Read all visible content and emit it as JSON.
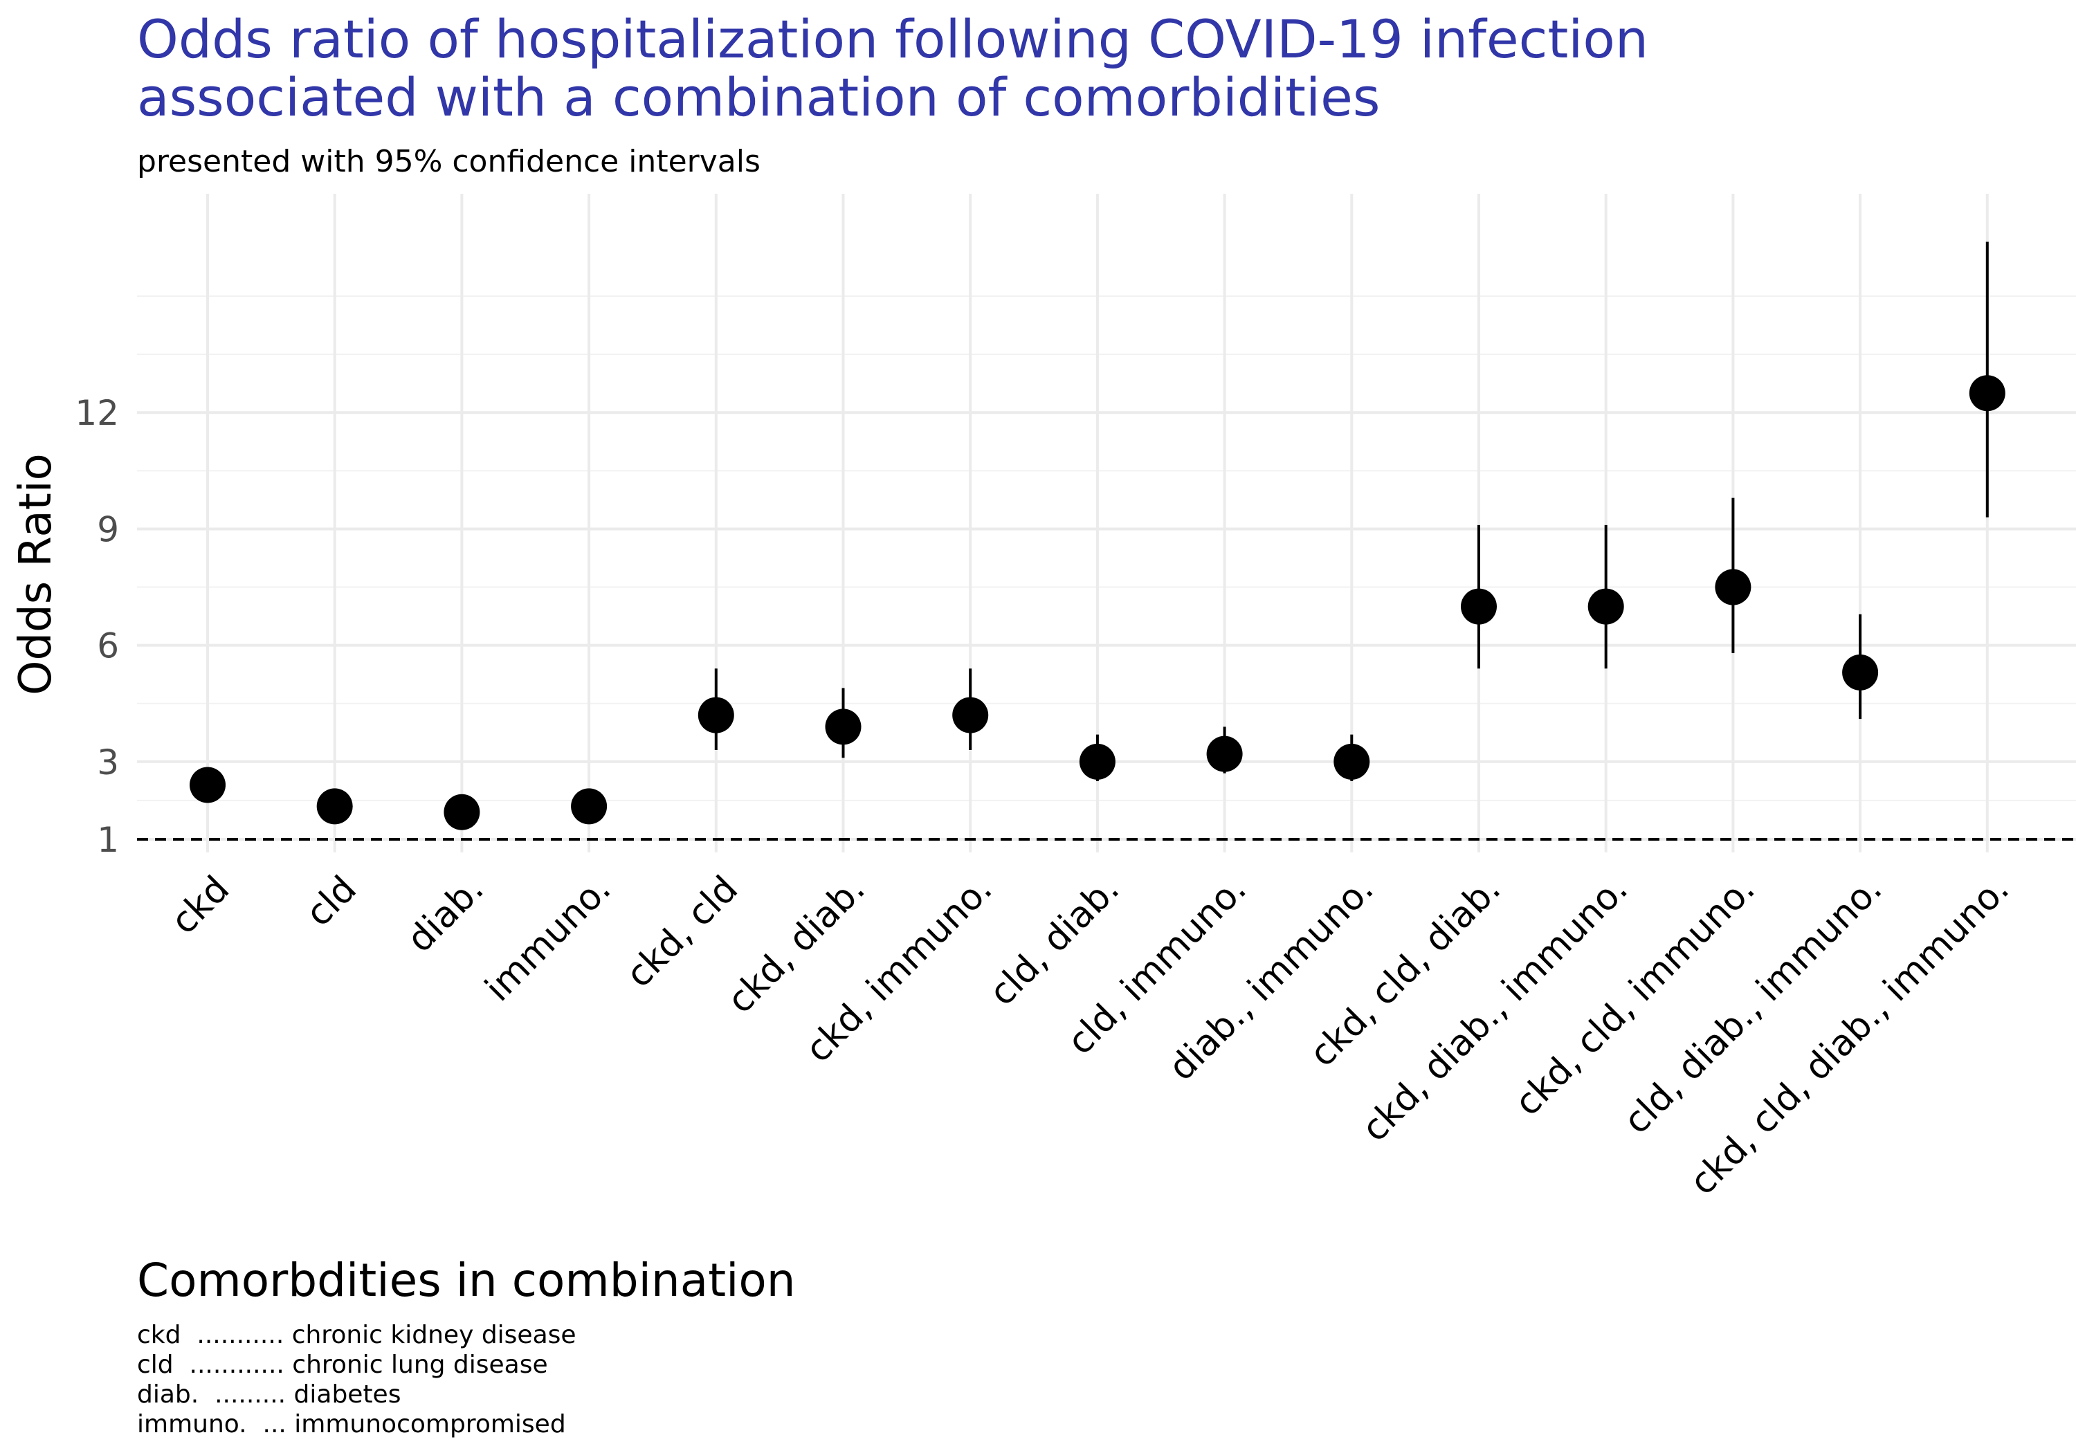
{
  "title": {
    "line1": "Odds ratio of hospitalization following COVID-19 infection",
    "line2": "associated with a combination of comorbidities"
  },
  "subtitle": "presented with 95% confidence intervals",
  "caption": {
    "title": "Comorbdities in combination",
    "lines": [
      "ckd  ........... chronic kidney disease",
      "cld  ............ chronic lung disease",
      "diab.  ......... diabetes",
      "immuno.  ... immunocompromised"
    ]
  },
  "colors": {
    "title": "#3136a8",
    "points": "#000000",
    "grid": "#ebebeb"
  },
  "chart_data": {
    "type": "scatter",
    "title": "Odds ratio of hospitalization following COVID-19 infection associated with a combination of comorbidities",
    "subtitle": "presented with 95% confidence intervals",
    "xlabel": "",
    "ylabel": "Odds Ratio",
    "yticks": [
      1,
      3,
      6,
      9,
      12
    ],
    "ylim": [
      0.4,
      17.2
    ],
    "reference_line": 1,
    "grid": true,
    "categories": [
      "ckd",
      "cld",
      "diab.",
      "immuno.",
      "ckd, cld",
      "ckd, diab.",
      "ckd, immuno.",
      "cld, diab.",
      "cld, immuno.",
      "diab., immuno.",
      "ckd, cld, diab.",
      "ckd, diab., immuno.",
      "ckd, cld, immuno.",
      "cld, diab., immuno.",
      "ckd, cld, diab., immuno."
    ],
    "series": [
      {
        "values": [
          2.4,
          1.85,
          1.7,
          1.85,
          4.2,
          3.9,
          4.2,
          3.0,
          3.2,
          3.0,
          7.0,
          7.0,
          7.5,
          5.3,
          12.5
        ],
        "lower": [
          2.1,
          1.65,
          1.5,
          1.65,
          3.3,
          3.1,
          3.3,
          2.5,
          2.7,
          2.5,
          5.4,
          5.4,
          5.8,
          4.1,
          9.3
        ],
        "upper": [
          2.8,
          2.1,
          1.9,
          2.1,
          5.4,
          4.9,
          5.4,
          3.7,
          3.9,
          3.7,
          9.1,
          9.1,
          9.8,
          6.8,
          16.4
        ]
      }
    ]
  }
}
